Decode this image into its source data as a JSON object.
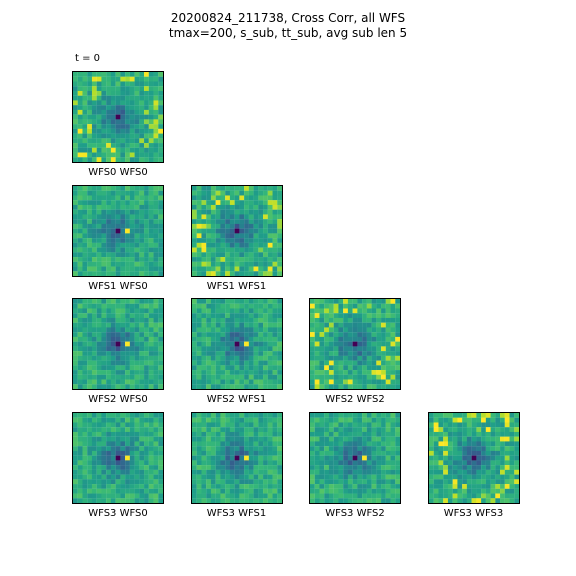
{
  "figure": {
    "title_line1": "20200824_211738,  Cross Corr, all WFS",
    "title_line2": "tmax=200, s_sub, tt_sub, avg sub len 5",
    "time_label": "t = 0"
  },
  "chart_data": {
    "type": "heatmap",
    "layout": "lower-triangular grid of cross-correlation maps",
    "colormap": "viridis",
    "panels": [
      {
        "label": "WFS0 WFS0",
        "row": 0,
        "col": 0,
        "peak_low": true,
        "peak_high": false
      },
      {
        "label": "WFS1 WFS0",
        "row": 1,
        "col": 0,
        "peak_low": true,
        "peak_high": true
      },
      {
        "label": "WFS1 WFS1",
        "row": 1,
        "col": 1,
        "peak_low": true,
        "peak_high": false
      },
      {
        "label": "WFS2 WFS0",
        "row": 2,
        "col": 0,
        "peak_low": true,
        "peak_high": true
      },
      {
        "label": "WFS2 WFS1",
        "row": 2,
        "col": 1,
        "peak_low": true,
        "peak_high": true
      },
      {
        "label": "WFS2 WFS2",
        "row": 2,
        "col": 2,
        "peak_low": true,
        "peak_high": false
      },
      {
        "label": "WFS3 WFS0",
        "row": 3,
        "col": 0,
        "peak_low": true,
        "peak_high": true
      },
      {
        "label": "WFS3 WFS1",
        "row": 3,
        "col": 1,
        "peak_low": true,
        "peak_high": true
      },
      {
        "label": "WFS3 WFS2",
        "row": 3,
        "col": 2,
        "peak_low": true,
        "peak_high": true
      },
      {
        "label": "WFS3 WFS3",
        "row": 3,
        "col": 3,
        "peak_low": true,
        "peak_high": false
      }
    ]
  }
}
